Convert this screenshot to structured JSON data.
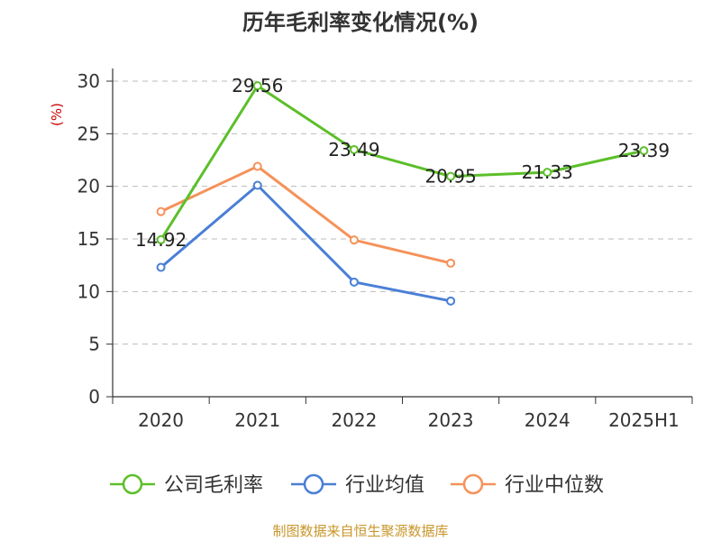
{
  "chart_data": {
    "type": "line",
    "title": "历年毛利率变化情况(%)",
    "ylabel": "(%)",
    "xlabel": "",
    "categories": [
      "2020",
      "2021",
      "2022",
      "2023",
      "2024",
      "2025H1"
    ],
    "ylim": [
      0,
      30
    ],
    "yticks": [
      0,
      5,
      10,
      15,
      20,
      25,
      30
    ],
    "grid": true,
    "legend_position": "bottom",
    "series": [
      {
        "name": "公司毛利率",
        "color": "#5cbf2a",
        "values": [
          14.92,
          29.56,
          23.49,
          20.95,
          21.33,
          23.39
        ],
        "labels": [
          "14.92",
          "29.56",
          "23.49",
          "20.95",
          "21.33",
          "23.39"
        ]
      },
      {
        "name": "行业均值",
        "color": "#4a7fd6",
        "values": [
          12.3,
          20.1,
          10.9,
          9.1,
          null,
          null
        ]
      },
      {
        "name": "行业中位数",
        "color": "#f5925a",
        "values": [
          17.6,
          21.9,
          14.9,
          12.7,
          null,
          null
        ]
      }
    ]
  },
  "source_note": "制图数据来自恒生聚源数据库"
}
